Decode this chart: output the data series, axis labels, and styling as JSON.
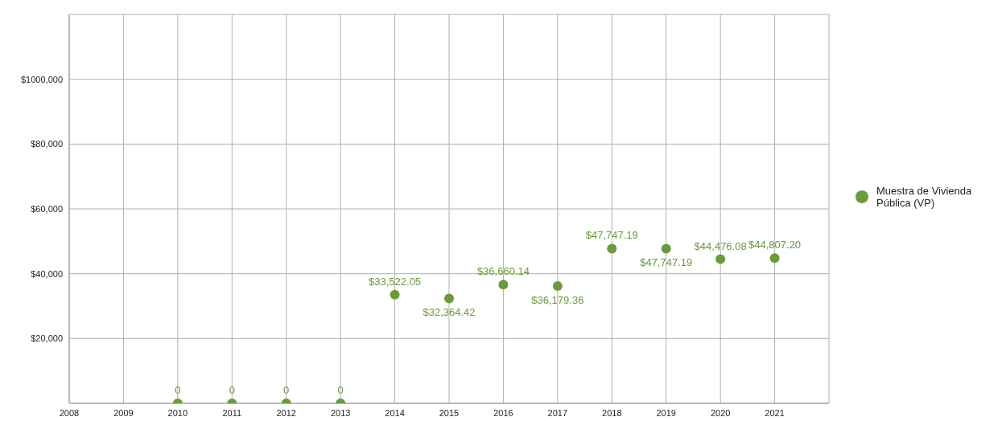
{
  "chart_data": {
    "type": "scatter",
    "x": [
      2010,
      2011,
      2012,
      2013,
      2014,
      2015,
      2016,
      2017,
      2018,
      2019,
      2020,
      2021
    ],
    "series": [
      {
        "name": "Muestra de Vivienda Pública (VP)",
        "color": "#6b9a3a",
        "values": [
          0,
          0,
          0,
          0,
          33522.05,
          32364.42,
          36660.14,
          36179.36,
          47747.19,
          47747.19,
          44476.08,
          44807.2
        ],
        "value_labels": [
          "0",
          "0",
          "0",
          "0",
          "$33,522.05",
          "$32,364.42",
          "$36,660.14",
          "$36,179.36",
          "$47,747.19",
          "$47,747.19",
          "$44,476.08",
          "$44,807.20"
        ]
      }
    ],
    "xlim": [
      2008,
      2022
    ],
    "xticks": [
      2008,
      2009,
      2010,
      2011,
      2012,
      2013,
      2014,
      2015,
      2016,
      2017,
      2018,
      2019,
      2020,
      2021
    ],
    "ylim": [
      0,
      120000
    ],
    "yticks": [
      {
        "value": 20000,
        "label": "$20,000"
      },
      {
        "value": 40000,
        "label": "$40,000"
      },
      {
        "value": 60000,
        "label": "$60,000"
      },
      {
        "value": 80000,
        "label": "$80,000"
      },
      {
        "value": 100000,
        "label": "$1000,000"
      }
    ],
    "grid": true,
    "legend": "right",
    "marker": "circle"
  }
}
